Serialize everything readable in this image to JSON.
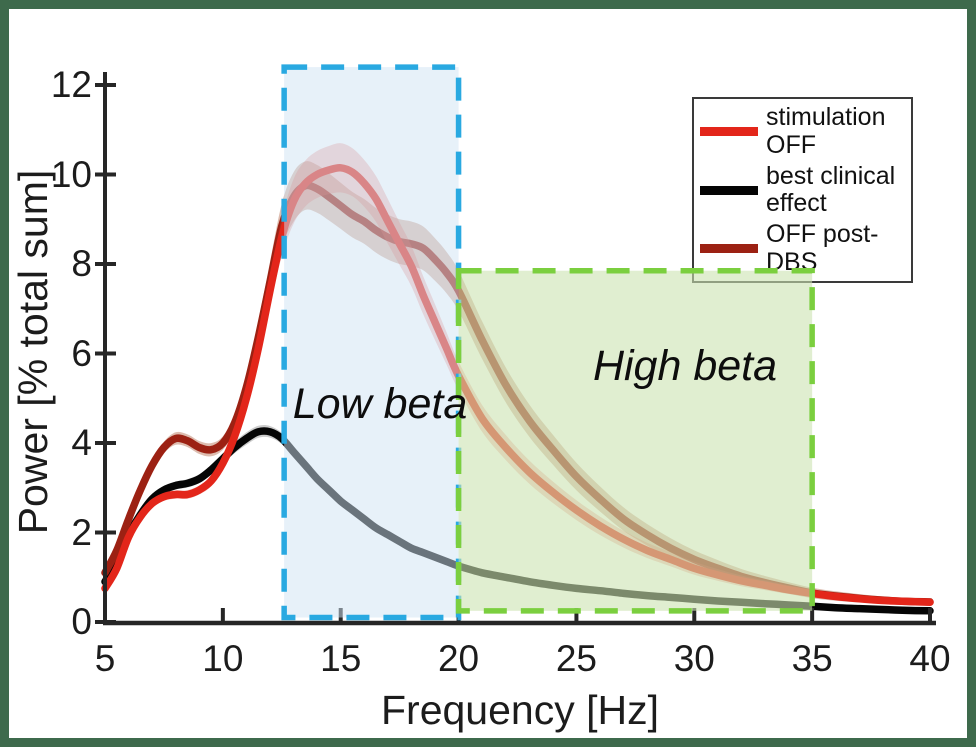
{
  "figure": {
    "frame_color": "#3e6a4c",
    "background": "#ffffff"
  },
  "chart_data": {
    "type": "line",
    "title": "",
    "xlabel": "Frequency [Hz]",
    "ylabel": "Power [% total sum]",
    "xlim": [
      5,
      40
    ],
    "ylim": [
      0,
      12
    ],
    "x_ticks": [
      5,
      10,
      15,
      20,
      25,
      30,
      35,
      40
    ],
    "y_ticks": [
      0,
      2,
      4,
      6,
      8,
      10,
      12
    ],
    "grid": false,
    "axis_color": "#262626",
    "legend": {
      "position": "top-right",
      "items": [
        {
          "label": "stimulation OFF",
          "color": "#e3261a"
        },
        {
          "label": "best clinical effect",
          "color": "#050505"
        },
        {
          "label": "OFF post-DBS",
          "color": "#9c2113"
        }
      ]
    },
    "regions": [
      {
        "name": "low-beta",
        "label": "Low beta",
        "x_range": [
          12.6,
          20
        ],
        "y_range": [
          0.1,
          12.4
        ],
        "fill": "#cfe3f4",
        "fill_opacity": 0.5,
        "border": "#29a9e1"
      },
      {
        "name": "high-beta",
        "label": "High beta",
        "x_range": [
          20,
          35
        ],
        "y_range": [
          0.25,
          7.85
        ],
        "fill": "#cce3b0",
        "fill_opacity": 0.6,
        "border": "#7bcf3f"
      }
    ],
    "series": [
      {
        "id": "stimulation-off",
        "name": "stimulation OFF",
        "color": "#e3261a",
        "band_color": "rgba(222,70,60,0.30)",
        "points": [
          [
            5,
            0.75
          ],
          [
            5.5,
            1.2
          ],
          [
            6,
            1.9
          ],
          [
            6.5,
            2.35
          ],
          [
            7,
            2.65
          ],
          [
            7.5,
            2.8
          ],
          [
            8,
            2.85
          ],
          [
            8.5,
            2.85
          ],
          [
            9,
            2.95
          ],
          [
            9.5,
            3.15
          ],
          [
            10,
            3.55
          ],
          [
            10.5,
            4.15
          ],
          [
            11,
            5.0
          ],
          [
            11.5,
            6.1
          ],
          [
            12,
            7.4
          ],
          [
            12.5,
            8.6
          ],
          [
            13,
            9.4
          ],
          [
            13.5,
            9.8
          ],
          [
            14,
            10.0
          ],
          [
            14.5,
            10.1
          ],
          [
            15,
            10.15
          ],
          [
            15.5,
            10.05
          ],
          [
            16,
            9.8
          ],
          [
            16.5,
            9.45
          ],
          [
            17,
            8.95
          ],
          [
            17.5,
            8.45
          ],
          [
            18,
            7.95
          ],
          [
            18.5,
            7.3
          ],
          [
            19,
            6.7
          ],
          [
            19.5,
            6.1
          ],
          [
            20,
            5.5
          ],
          [
            21,
            4.55
          ],
          [
            22,
            3.9
          ],
          [
            23,
            3.35
          ],
          [
            24,
            2.9
          ],
          [
            25,
            2.5
          ],
          [
            26,
            2.15
          ],
          [
            27,
            1.85
          ],
          [
            28,
            1.6
          ],
          [
            29,
            1.4
          ],
          [
            30,
            1.2
          ],
          [
            31,
            1.05
          ],
          [
            32,
            0.92
          ],
          [
            33,
            0.82
          ],
          [
            34,
            0.72
          ],
          [
            35,
            0.64
          ],
          [
            36,
            0.57
          ],
          [
            37,
            0.52
          ],
          [
            38,
            0.48
          ],
          [
            39,
            0.46
          ],
          [
            40,
            0.44
          ]
        ],
        "band_halfwidth": [
          [
            5,
            0.08
          ],
          [
            9,
            0.1
          ],
          [
            11,
            0.18
          ],
          [
            12,
            0.35
          ],
          [
            13,
            0.5
          ],
          [
            15,
            0.55
          ],
          [
            17,
            0.5
          ],
          [
            19,
            0.4
          ],
          [
            20,
            0.32
          ],
          [
            24,
            0.24
          ],
          [
            28,
            0.17
          ],
          [
            32,
            0.12
          ],
          [
            36,
            0.07
          ],
          [
            40,
            0.05
          ]
        ]
      },
      {
        "id": "best-clinical-effect",
        "name": "best clinical effect",
        "color": "#050505",
        "band_color": "rgba(110,110,110,0.35)",
        "points": [
          [
            5,
            0.9
          ],
          [
            5.5,
            1.35
          ],
          [
            6,
            1.95
          ],
          [
            6.5,
            2.4
          ],
          [
            7,
            2.75
          ],
          [
            7.5,
            2.95
          ],
          [
            8,
            3.05
          ],
          [
            8.5,
            3.1
          ],
          [
            9,
            3.2
          ],
          [
            9.5,
            3.4
          ],
          [
            10,
            3.65
          ],
          [
            10.5,
            3.9
          ],
          [
            11,
            4.1
          ],
          [
            11.5,
            4.25
          ],
          [
            12,
            4.25
          ],
          [
            12.5,
            4.1
          ],
          [
            13,
            3.8
          ],
          [
            13.5,
            3.5
          ],
          [
            14,
            3.2
          ],
          [
            14.5,
            2.95
          ],
          [
            15,
            2.7
          ],
          [
            15.5,
            2.5
          ],
          [
            16,
            2.3
          ],
          [
            16.5,
            2.1
          ],
          [
            17,
            1.95
          ],
          [
            17.5,
            1.8
          ],
          [
            18,
            1.65
          ],
          [
            18.5,
            1.55
          ],
          [
            19,
            1.45
          ],
          [
            19.5,
            1.35
          ],
          [
            20,
            1.25
          ],
          [
            21,
            1.1
          ],
          [
            22,
            1.0
          ],
          [
            23,
            0.9
          ],
          [
            24,
            0.82
          ],
          [
            25,
            0.75
          ],
          [
            26,
            0.7
          ],
          [
            27,
            0.64
          ],
          [
            28,
            0.59
          ],
          [
            29,
            0.55
          ],
          [
            30,
            0.51
          ],
          [
            31,
            0.47
          ],
          [
            32,
            0.44
          ],
          [
            33,
            0.41
          ],
          [
            34,
            0.38
          ],
          [
            35,
            0.35
          ],
          [
            36,
            0.32
          ],
          [
            37,
            0.3
          ],
          [
            38,
            0.28
          ],
          [
            39,
            0.26
          ],
          [
            40,
            0.25
          ]
        ],
        "band_halfwidth": [
          [
            5,
            0.05
          ],
          [
            9,
            0.1
          ],
          [
            11,
            0.14
          ],
          [
            13,
            0.12
          ],
          [
            16,
            0.09
          ],
          [
            20,
            0.07
          ],
          [
            30,
            0.05
          ],
          [
            40,
            0.04
          ]
        ]
      },
      {
        "id": "off-post-dbs",
        "name": "OFF post-DBS",
        "color": "#9c2113",
        "band_color": "rgba(165,80,45,0.38)",
        "points": [
          [
            5,
            1.1
          ],
          [
            5.5,
            1.6
          ],
          [
            6,
            2.3
          ],
          [
            6.5,
            2.95
          ],
          [
            7,
            3.5
          ],
          [
            7.5,
            3.9
          ],
          [
            8,
            4.1
          ],
          [
            8.5,
            4.05
          ],
          [
            9,
            3.9
          ],
          [
            9.5,
            3.85
          ],
          [
            10,
            4.0
          ],
          [
            10.5,
            4.45
          ],
          [
            11,
            5.25
          ],
          [
            11.5,
            6.35
          ],
          [
            12,
            7.6
          ],
          [
            12.5,
            8.85
          ],
          [
            13,
            9.5
          ],
          [
            13.5,
            9.75
          ],
          [
            14,
            9.68
          ],
          [
            14.5,
            9.5
          ],
          [
            15,
            9.3
          ],
          [
            15.5,
            9.1
          ],
          [
            16,
            8.95
          ],
          [
            16.5,
            8.75
          ],
          [
            17,
            8.6
          ],
          [
            17.5,
            8.5
          ],
          [
            18,
            8.45
          ],
          [
            18.5,
            8.35
          ],
          [
            19,
            8.1
          ],
          [
            19.5,
            7.8
          ],
          [
            20,
            7.4
          ],
          [
            21,
            6.3
          ],
          [
            22,
            5.3
          ],
          [
            23,
            4.5
          ],
          [
            24,
            3.85
          ],
          [
            25,
            3.25
          ],
          [
            26,
            2.75
          ],
          [
            27,
            2.3
          ],
          [
            28,
            1.95
          ],
          [
            29,
            1.65
          ],
          [
            30,
            1.4
          ],
          [
            31,
            1.2
          ],
          [
            32,
            1.02
          ],
          [
            33,
            0.88
          ],
          [
            34,
            0.76
          ],
          [
            35,
            0.65
          ],
          [
            36,
            0.58
          ],
          [
            37,
            0.53
          ],
          [
            38,
            0.49
          ],
          [
            39,
            0.46
          ],
          [
            40,
            0.45
          ]
        ],
        "band_halfwidth": [
          [
            5,
            0.08
          ],
          [
            8,
            0.14
          ],
          [
            10,
            0.15
          ],
          [
            11,
            0.25
          ],
          [
            12,
            0.45
          ],
          [
            13,
            0.55
          ],
          [
            16,
            0.5
          ],
          [
            18,
            0.5
          ],
          [
            20,
            0.45
          ],
          [
            23,
            0.36
          ],
          [
            26,
            0.28
          ],
          [
            30,
            0.2
          ],
          [
            34,
            0.13
          ],
          [
            38,
            0.08
          ],
          [
            40,
            0.06
          ]
        ]
      }
    ]
  }
}
